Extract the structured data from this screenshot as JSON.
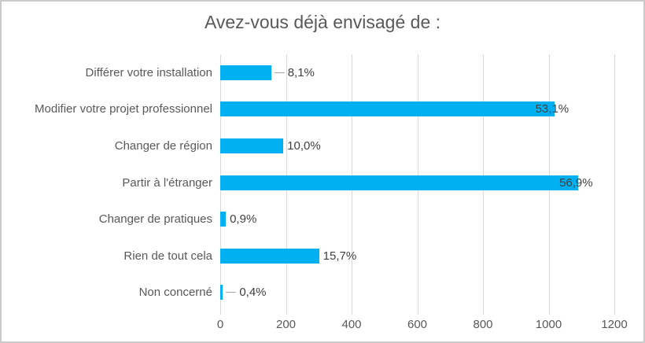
{
  "chart_data": {
    "type": "bar",
    "orientation": "horizontal",
    "title": "Avez-vous déjà envisagé de :",
    "categories": [
      "Différer votre installation",
      "Modifier votre projet professionnel",
      "Changer de région",
      "Partir à l'étranger",
      "Changer de pratiques",
      "Rien de tout cela",
      "Non concerné"
    ],
    "values": [
      155,
      1017,
      192,
      1090,
      17,
      301,
      8
    ],
    "value_labels": [
      "8,1%",
      "53,1%",
      "10,0%",
      "56,9%",
      "0,9%",
      "15,7%",
      "0,4%"
    ],
    "label_modes": [
      "leader",
      "overlap",
      "out",
      "overlap",
      "out",
      "out",
      "leader"
    ],
    "xlim": [
      0,
      1200
    ],
    "x_ticks": [
      0,
      200,
      400,
      600,
      800,
      1000,
      1200
    ],
    "xlabel": "",
    "ylabel": "",
    "legend": false,
    "gridlines": true,
    "bar_color": "#00B0F0",
    "grid_color": "#D9D9D9",
    "leader_color": "#A6A6A6",
    "text_color": "#595959",
    "value_text_color": "#404040"
  }
}
